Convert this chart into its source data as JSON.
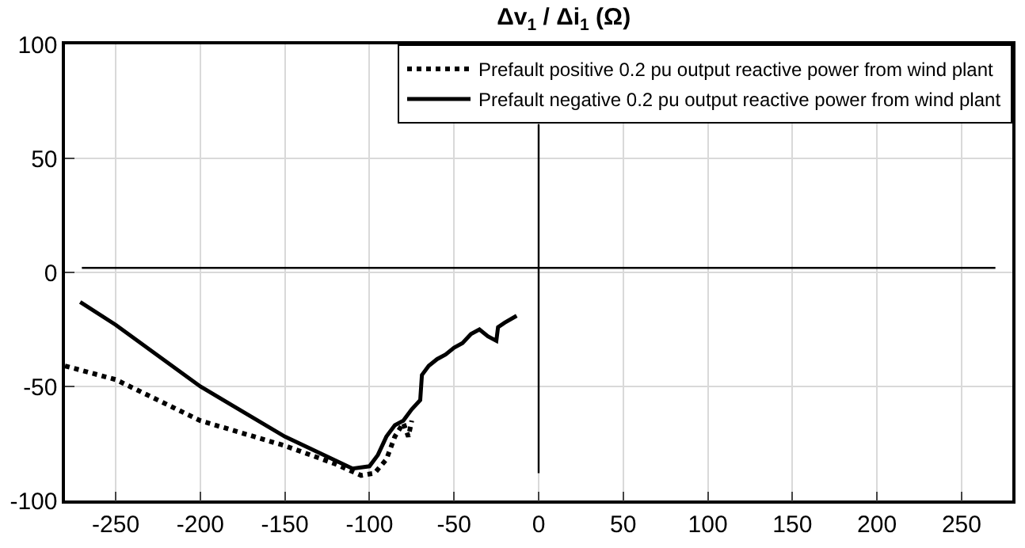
{
  "chart_data": {
    "type": "line",
    "title": "Δv$_{1}$ / Δi$_{1}$ (Ω)",
    "xlim": [
      -280,
      280
    ],
    "xticks": [
      -250,
      -200,
      -150,
      -100,
      -50,
      0,
      50,
      100,
      150,
      200,
      250
    ],
    "ylim": [
      -100,
      100
    ],
    "yticks": [
      -100,
      -50,
      0,
      50,
      100
    ],
    "grid": true,
    "legend": "top right",
    "marker": "none",
    "series": [
      {
        "name": "Prefault positive 0.2 pu output reactive power from wind plant",
        "color": "#000000",
        "line_style": "dotted",
        "x": [
          -280,
          -250,
          -200,
          -150,
          -120,
          -105,
          -97,
          -90,
          -85,
          -80,
          -77,
          -75
        ],
        "values": [
          -41,
          -47,
          -65,
          -76,
          -84,
          -89,
          -88,
          -82,
          -72,
          -66,
          -72,
          -65
        ]
      },
      {
        "name": "Prefault negative 0.2 pu output reactive power from wind plant",
        "color": "#000000",
        "line_style": "solid",
        "x": [
          -271,
          -250,
          -200,
          -150,
          -110,
          -100,
          -95,
          -90,
          -85,
          -80,
          -75,
          -70,
          -69,
          -65,
          -60,
          -55,
          -50,
          -45,
          -40,
          -35,
          -30,
          -25,
          -24,
          -20,
          -13
        ],
        "values": [
          -13,
          -23,
          -50,
          -72,
          -86,
          -85,
          -80,
          -72,
          -67,
          -65,
          -60,
          -56,
          -45,
          -41,
          -38,
          -36,
          -33,
          -31,
          -27,
          -25,
          -28,
          -30,
          -24,
          -22,
          -19
        ]
      },
      {
        "color": "#000000",
        "line_style": "solid",
        "x": [
          -270,
          270
        ],
        "values": [
          2,
          2
        ]
      },
      {
        "color": "#000000",
        "line_style": "solid",
        "x": [
          0,
          0
        ],
        "values": [
          -88,
          65
        ]
      }
    ]
  }
}
